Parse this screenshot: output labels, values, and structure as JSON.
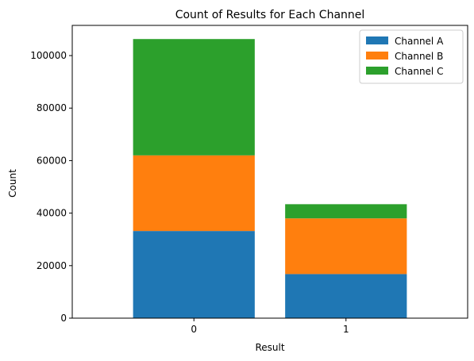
{
  "chart_data": {
    "type": "bar",
    "stacked": true,
    "title": "Count of Results for Each Channel",
    "xlabel": "Result",
    "ylabel": "Count",
    "categories": [
      "0",
      "1"
    ],
    "series": [
      {
        "name": "Channel A",
        "color": "#1f77b4",
        "values": [
          33200,
          16800
        ]
      },
      {
        "name": "Channel B",
        "color": "#ff7f0e",
        "values": [
          28800,
          21200
        ]
      },
      {
        "name": "Channel C",
        "color": "#2ca02c",
        "values": [
          44300,
          5400
        ]
      }
    ],
    "ylim": [
      0,
      111500
    ],
    "yticks": [
      0,
      20000,
      40000,
      60000,
      80000,
      100000
    ],
    "ytick_labels": [
      "0",
      "20000",
      "40000",
      "60000",
      "80000",
      "100000"
    ],
    "grid": false,
    "legend_position": "top-right"
  }
}
